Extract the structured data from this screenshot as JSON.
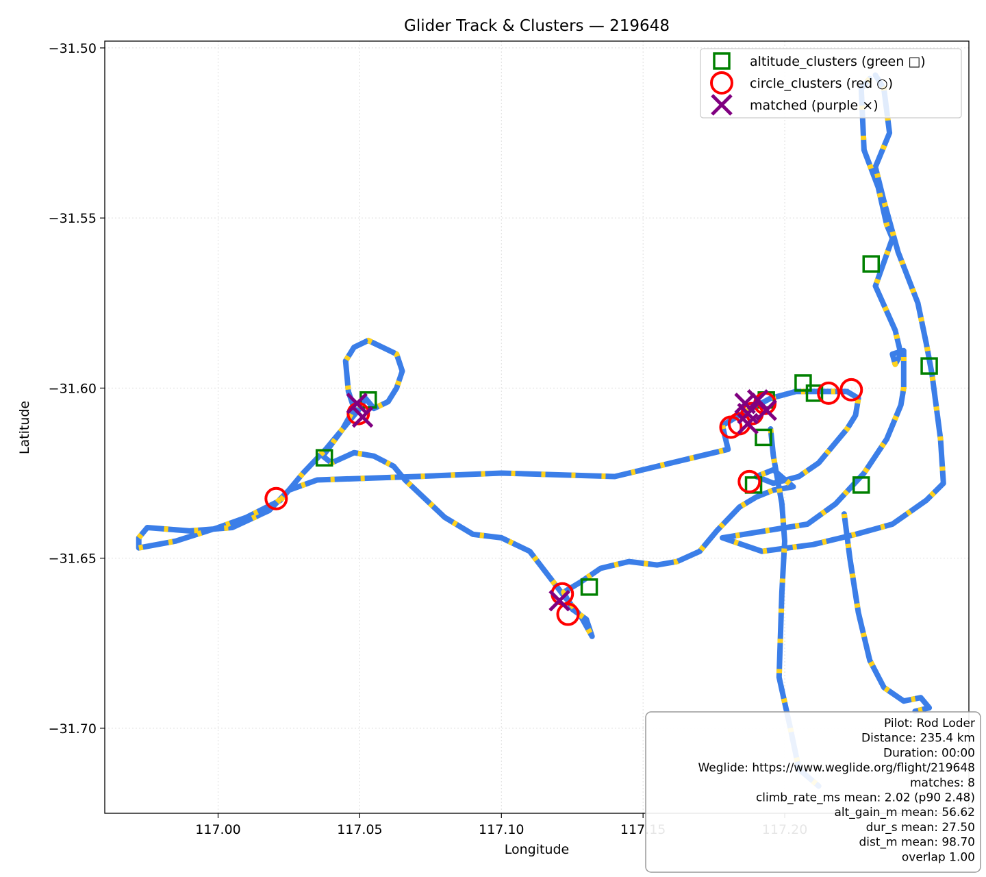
{
  "chart_data": {
    "type": "scatter",
    "title": "Glider Track & Clusters — 219648",
    "xlabel": "Longitude",
    "ylabel": "Latitude",
    "xlim": [
      116.96,
      117.265
    ],
    "ylim": [
      -31.725,
      -31.498
    ],
    "xticks": [
      117.0,
      117.05,
      117.1,
      117.15,
      117.2
    ],
    "xtick_labels": [
      "117.00",
      "117.05",
      "117.10",
      "117.15",
      "117.20"
    ],
    "yticks": [
      -31.5,
      -31.55,
      -31.6,
      -31.65,
      -31.7
    ],
    "ytick_labels": [
      "−31.50",
      "−31.55",
      "−31.60",
      "−31.65",
      "−31.70"
    ],
    "grid": true,
    "legend_position": "top-right",
    "colors": {
      "track": "#3b7ee8",
      "climb": "#ffd21a",
      "altitude": "#008000",
      "circle": "#ff0000",
      "matched": "#800080"
    },
    "series": [
      {
        "name": "altitude_clusters (green □)",
        "marker": "square",
        "points": [
          [
            117.2305,
            -31.5635
          ],
          [
            117.251,
            -31.5935
          ],
          [
            117.2065,
            -31.5985
          ],
          [
            117.2105,
            -31.6015
          ],
          [
            117.1935,
            -31.6035
          ],
          [
            117.1925,
            -31.6145
          ],
          [
            117.189,
            -31.6285
          ],
          [
            117.227,
            -31.6285
          ],
          [
            117.053,
            -31.6035
          ],
          [
            117.0375,
            -31.6205
          ],
          [
            117.131,
            -31.6585
          ]
        ]
      },
      {
        "name": "circle_clusters (red ○)",
        "marker": "circle",
        "points": [
          [
            117.2235,
            -31.6005
          ],
          [
            117.2155,
            -31.6015
          ],
          [
            117.193,
            -31.6045
          ],
          [
            117.1885,
            -31.6075
          ],
          [
            117.184,
            -31.6105
          ],
          [
            117.181,
            -31.6115
          ],
          [
            117.1875,
            -31.6275
          ],
          [
            117.0495,
            -31.6075
          ],
          [
            117.0205,
            -31.6325
          ],
          [
            117.1215,
            -31.6605
          ],
          [
            117.1235,
            -31.6665
          ]
        ]
      },
      {
        "name": "matched (purple ×)",
        "marker": "x",
        "points": [
          [
            117.1905,
            -31.6035
          ],
          [
            117.186,
            -31.6045
          ],
          [
            117.187,
            -31.6075
          ],
          [
            117.187,
            -31.6105
          ],
          [
            117.1935,
            -31.6065
          ],
          [
            117.049,
            -31.6045
          ],
          [
            117.051,
            -31.6085
          ],
          [
            117.1205,
            -31.6625
          ]
        ]
      }
    ],
    "track": [
      [
        117.23,
        -31.509
      ],
      [
        117.227,
        -31.512
      ],
      [
        117.228,
        -31.53
      ],
      [
        117.233,
        -31.541
      ],
      [
        117.236,
        -31.552
      ],
      [
        117.238,
        -31.556
      ],
      [
        117.232,
        -31.57
      ],
      [
        117.239,
        -31.583
      ],
      [
        117.241,
        -31.59
      ],
      [
        117.239,
        -31.593
      ],
      [
        117.238,
        -31.59
      ],
      [
        117.242,
        -31.589
      ],
      [
        117.242,
        -31.6
      ],
      [
        117.241,
        -31.605
      ],
      [
        117.236,
        -31.615
      ],
      [
        117.228,
        -31.625
      ],
      [
        117.218,
        -31.634
      ],
      [
        117.208,
        -31.64
      ],
      [
        117.193,
        -31.642
      ],
      [
        117.178,
        -31.644
      ],
      [
        117.192,
        -31.648
      ],
      [
        117.21,
        -31.646
      ],
      [
        117.225,
        -31.643
      ],
      [
        117.238,
        -31.64
      ],
      [
        117.25,
        -31.633
      ],
      [
        117.256,
        -31.628
      ],
      [
        117.255,
        -31.615
      ],
      [
        117.252,
        -31.596
      ],
      [
        117.25,
        -31.587
      ],
      [
        117.247,
        -31.575
      ],
      [
        117.24,
        -31.56
      ],
      [
        117.235,
        -31.545
      ],
      [
        117.232,
        -31.535
      ],
      [
        117.237,
        -31.525
      ],
      [
        117.235,
        -31.512
      ],
      [
        117.232,
        -31.508
      ]
    ],
    "track2": [
      [
        116.972,
        -31.644
      ],
      [
        116.975,
        -31.641
      ],
      [
        116.99,
        -31.642
      ],
      [
        117.005,
        -31.641
      ],
      [
        117.018,
        -31.636
      ],
      [
        117.025,
        -31.63
      ],
      [
        117.035,
        -31.627
      ],
      [
        117.07,
        -31.626
      ],
      [
        117.1,
        -31.625
      ],
      [
        117.14,
        -31.626
      ],
      [
        117.17,
        -31.62
      ],
      [
        117.18,
        -31.618
      ],
      [
        117.178,
        -31.611
      ],
      [
        117.186,
        -31.607
      ],
      [
        117.195,
        -31.603
      ],
      [
        117.204,
        -31.601
      ],
      [
        117.212,
        -31.601
      ],
      [
        117.222,
        -31.601
      ],
      [
        117.226,
        -31.603
      ],
      [
        117.225,
        -31.608
      ],
      [
        117.222,
        -31.612
      ],
      [
        117.218,
        -31.616
      ],
      [
        117.212,
        -31.622
      ],
      [
        117.205,
        -31.626
      ],
      [
        117.196,
        -31.628
      ],
      [
        117.19,
        -31.626
      ],
      [
        117.196,
        -31.624
      ],
      [
        117.203,
        -31.629
      ],
      [
        117.196,
        -31.63
      ],
      [
        117.19,
        -31.632
      ],
      [
        117.184,
        -31.635
      ],
      [
        117.176,
        -31.642
      ],
      [
        117.17,
        -31.648
      ],
      [
        117.162,
        -31.651
      ],
      [
        117.155,
        -31.652
      ],
      [
        117.145,
        -31.651
      ],
      [
        117.135,
        -31.653
      ],
      [
        117.128,
        -31.657
      ],
      [
        117.122,
        -31.66
      ],
      [
        117.125,
        -31.665
      ],
      [
        117.13,
        -31.668
      ],
      [
        117.132,
        -31.673
      ],
      [
        117.128,
        -31.667
      ],
      [
        117.122,
        -31.661
      ],
      [
        117.11,
        -31.648
      ],
      [
        117.1,
        -31.644
      ],
      [
        117.09,
        -31.643
      ],
      [
        117.08,
        -31.638
      ],
      [
        117.066,
        -31.627
      ],
      [
        117.062,
        -31.623
      ],
      [
        117.055,
        -31.62
      ],
      [
        117.048,
        -31.619
      ],
      [
        117.04,
        -31.622
      ],
      [
        117.037,
        -31.62
      ],
      [
        117.044,
        -31.612
      ],
      [
        117.048,
        -31.606
      ],
      [
        117.046,
        -31.601
      ],
      [
        117.045,
        -31.592
      ],
      [
        117.048,
        -31.588
      ],
      [
        117.053,
        -31.586
      ],
      [
        117.058,
        -31.588
      ],
      [
        117.063,
        -31.59
      ],
      [
        117.065,
        -31.595
      ],
      [
        117.063,
        -31.6
      ],
      [
        117.06,
        -31.604
      ],
      [
        117.055,
        -31.606
      ],
      [
        117.052,
        -31.603
      ],
      [
        117.05,
        -31.606
      ],
      [
        117.045,
        -31.611
      ],
      [
        117.038,
        -31.618
      ],
      [
        117.03,
        -31.625
      ],
      [
        117.022,
        -31.633
      ],
      [
        117.01,
        -31.638
      ],
      [
        117.0,
        -31.641
      ],
      [
        116.985,
        -31.645
      ],
      [
        116.972,
        -31.647
      ],
      [
        116.972,
        -31.644
      ]
    ],
    "track3": [
      [
        117.195,
        -31.612
      ],
      [
        117.196,
        -31.62
      ],
      [
        117.199,
        -31.634
      ],
      [
        117.2,
        -31.645
      ],
      [
        117.199,
        -31.66
      ],
      [
        117.198,
        -31.685
      ],
      [
        117.202,
        -31.7
      ],
      [
        117.205,
        -31.712
      ],
      [
        117.212,
        -31.717
      ]
    ],
    "track4": [
      [
        117.221,
        -31.637
      ],
      [
        117.223,
        -31.65
      ],
      [
        117.226,
        -31.666
      ],
      [
        117.23,
        -31.68
      ],
      [
        117.235,
        -31.688
      ],
      [
        117.242,
        -31.692
      ],
      [
        117.248,
        -31.691
      ],
      [
        117.251,
        -31.694
      ],
      [
        117.246,
        -31.695
      ]
    ]
  },
  "info_box": {
    "lines": [
      "Pilot: Rod Loder",
      "Distance: 235.4 km",
      "Duration: 00:00",
      "Weglide: https://www.weglide.org/flight/219648",
      "matches: 8",
      "climb_rate_ms mean: 2.02 (p90 2.48)",
      "alt_gain_m mean: 56.62",
      "dur_s mean: 27.50",
      "dist_m mean: 98.70",
      "overlap 1.00"
    ]
  }
}
